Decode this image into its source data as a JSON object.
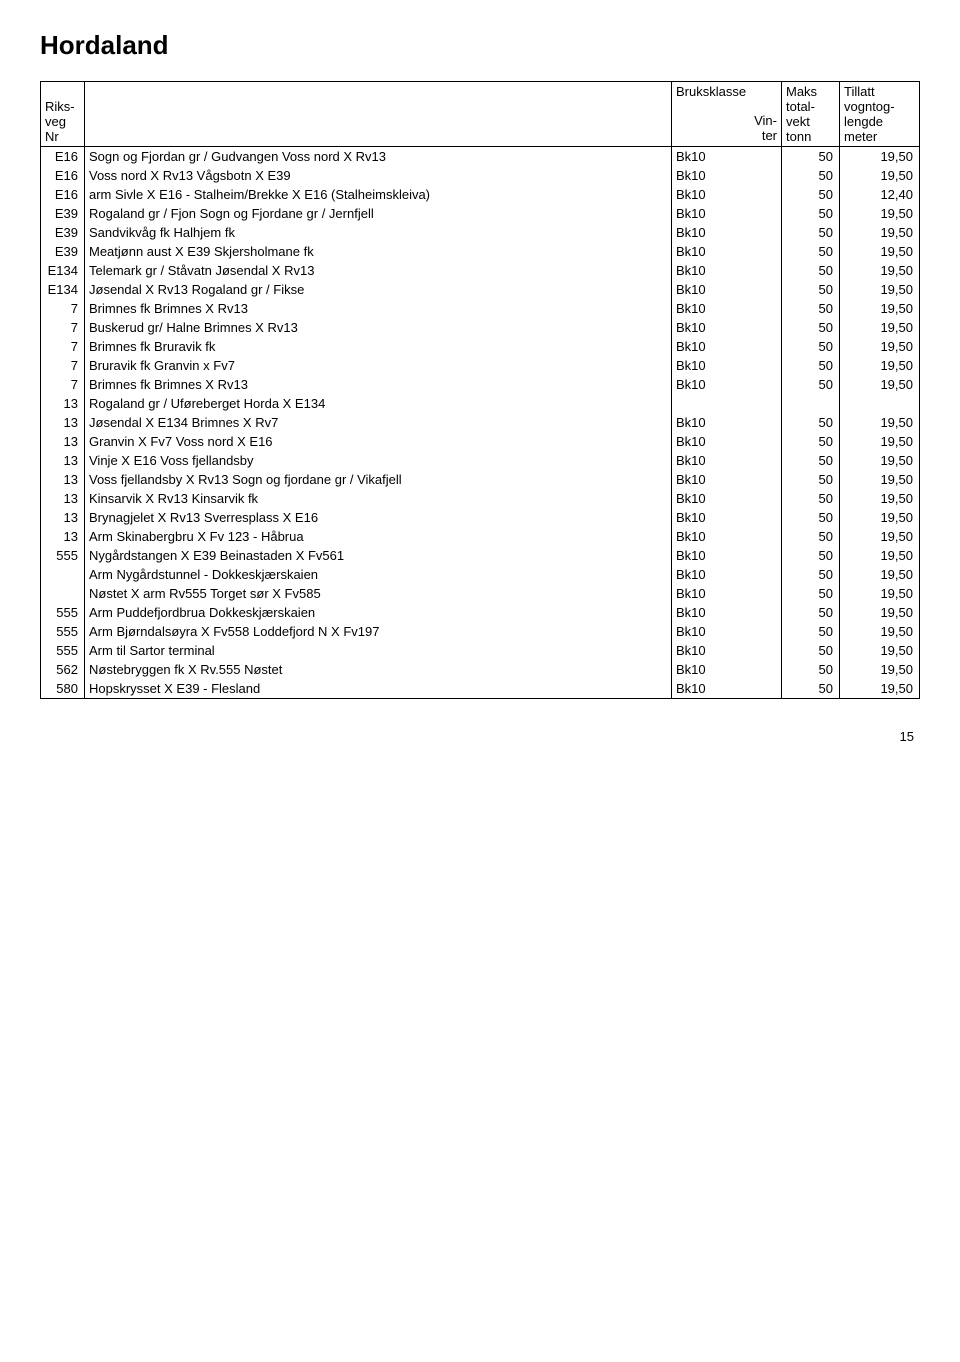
{
  "title": "Hordaland",
  "header": {
    "riksveg": "Riks-\nveg\nNr",
    "bruksklasse": "Bruksklasse",
    "vinter": "Vin-\nter",
    "maks": "Maks\ntotal-\nvekt\ntonn",
    "tillatt": "Tillatt\nvogntog-\nlengde\nmeter"
  },
  "rows": [
    {
      "nr": "E16",
      "desc": "Sogn og Fjordan gr / Gudvangen Voss nord X Rv13",
      "bk": "Bk10",
      "vekt": "50",
      "len": "19,50"
    },
    {
      "nr": "E16",
      "desc": "Voss nord X Rv13 Vågsbotn X E39",
      "bk": "Bk10",
      "vekt": "50",
      "len": "19,50"
    },
    {
      "nr": "E16",
      "desc": "arm Sivle X E16 - Stalheim/Brekke X E16 (Stalheimskleiva)",
      "bk": "Bk10",
      "vekt": "50",
      "len": "12,40"
    },
    {
      "nr": "E39",
      "desc": "Rogaland gr / Fjon Sogn og Fjordane gr / Jernfjell",
      "bk": "Bk10",
      "vekt": "50",
      "len": "19,50"
    },
    {
      "nr": "E39",
      "desc": "Sandvikvåg fk Halhjem fk",
      "bk": "Bk10",
      "vekt": "50",
      "len": "19,50"
    },
    {
      "nr": "E39",
      "desc": "Meatjønn aust X E39 Skjersholmane fk",
      "bk": "Bk10",
      "vekt": "50",
      "len": "19,50"
    },
    {
      "nr": "E134",
      "desc": "Telemark gr / Ståvatn Jøsendal X Rv13",
      "bk": "Bk10",
      "vekt": "50",
      "len": "19,50"
    },
    {
      "nr": "E134",
      "desc": "Jøsendal X Rv13 Rogaland gr / Fikse",
      "bk": "Bk10",
      "vekt": "50",
      "len": "19,50"
    },
    {
      "nr": "7",
      "desc": "Brimnes fk Brimnes X Rv13",
      "bk": "Bk10",
      "vekt": "50",
      "len": "19,50"
    },
    {
      "nr": "7",
      "desc": "Buskerud gr/ Halne Brimnes X Rv13",
      "bk": "Bk10",
      "vekt": "50",
      "len": "19,50"
    },
    {
      "nr": "7",
      "desc": "Brimnes fk Bruravik fk",
      "bk": "Bk10",
      "vekt": "50",
      "len": "19,50"
    },
    {
      "nr": "7",
      "desc": "Bruravik fk Granvin x Fv7",
      "bk": "Bk10",
      "vekt": "50",
      "len": "19,50"
    },
    {
      "nr": "7",
      "desc": "Brimnes fk Brimnes X Rv13",
      "bk": "Bk10",
      "vekt": "50",
      "len": "19,50"
    },
    {
      "nr": "13",
      "desc": "Rogaland gr / Uføreberget Horda X E134",
      "bk": "",
      "vekt": "",
      "len": ""
    },
    {
      "nr": "13",
      "desc": "Jøsendal X E134 Brimnes X Rv7",
      "bk": "Bk10",
      "vekt": "50",
      "len": "19,50"
    },
    {
      "nr": "13",
      "desc": "Granvin X Fv7 Voss nord X E16",
      "bk": "Bk10",
      "vekt": "50",
      "len": "19,50"
    },
    {
      "nr": "13",
      "desc": "Vinje X E16 Voss fjellandsby",
      "bk": "Bk10",
      "vekt": "50",
      "len": "19,50"
    },
    {
      "nr": "13",
      "desc": "Voss fjellandsby X Rv13 Sogn og fjordane gr / Vikafjell",
      "bk": "Bk10",
      "vekt": "50",
      "len": "19,50"
    },
    {
      "nr": "13",
      "desc": "Kinsarvik X Rv13 Kinsarvik fk",
      "bk": "Bk10",
      "vekt": "50",
      "len": "19,50"
    },
    {
      "nr": "13",
      "desc": "Brynagjelet X Rv13 Sverresplass X E16",
      "bk": "Bk10",
      "vekt": "50",
      "len": "19,50"
    },
    {
      "nr": "13",
      "desc": "Arm Skinabergbru X Fv 123 - Håbrua",
      "bk": "Bk10",
      "vekt": "50",
      "len": "19,50"
    },
    {
      "nr": "555",
      "desc": "Nygårdstangen X E39 Beinastaden X Fv561",
      "bk": "Bk10",
      "vekt": "50",
      "len": "19,50"
    },
    {
      "nr": "",
      "desc": "Arm Nygårdstunnel - Dokkeskjærskaien",
      "bk": "Bk10",
      "vekt": "50",
      "len": "19,50"
    },
    {
      "nr": "",
      "desc": "Nøstet X arm Rv555 Torget sør X Fv585",
      "bk": "Bk10",
      "vekt": "50",
      "len": "19,50"
    },
    {
      "nr": "555",
      "desc": "Arm Puddefjordbrua Dokkeskjærskaien",
      "bk": "Bk10",
      "vekt": "50",
      "len": "19,50"
    },
    {
      "nr": "555",
      "desc": "Arm Bjørndalsøyra X Fv558 Loddefjord N X Fv197",
      "bk": "Bk10",
      "vekt": "50",
      "len": "19,50"
    },
    {
      "nr": "555",
      "desc": "Arm til Sartor terminal",
      "bk": "Bk10",
      "vekt": "50",
      "len": "19,50"
    },
    {
      "nr": "562",
      "desc": "Nøstebryggen fk X Rv.555 Nøstet",
      "bk": "Bk10",
      "vekt": "50",
      "len": "19,50"
    },
    {
      "nr": "580",
      "desc": "Hopskrysset X E39 - Flesland",
      "bk": "Bk10",
      "vekt": "50",
      "len": "19,50"
    }
  ],
  "page": "15"
}
